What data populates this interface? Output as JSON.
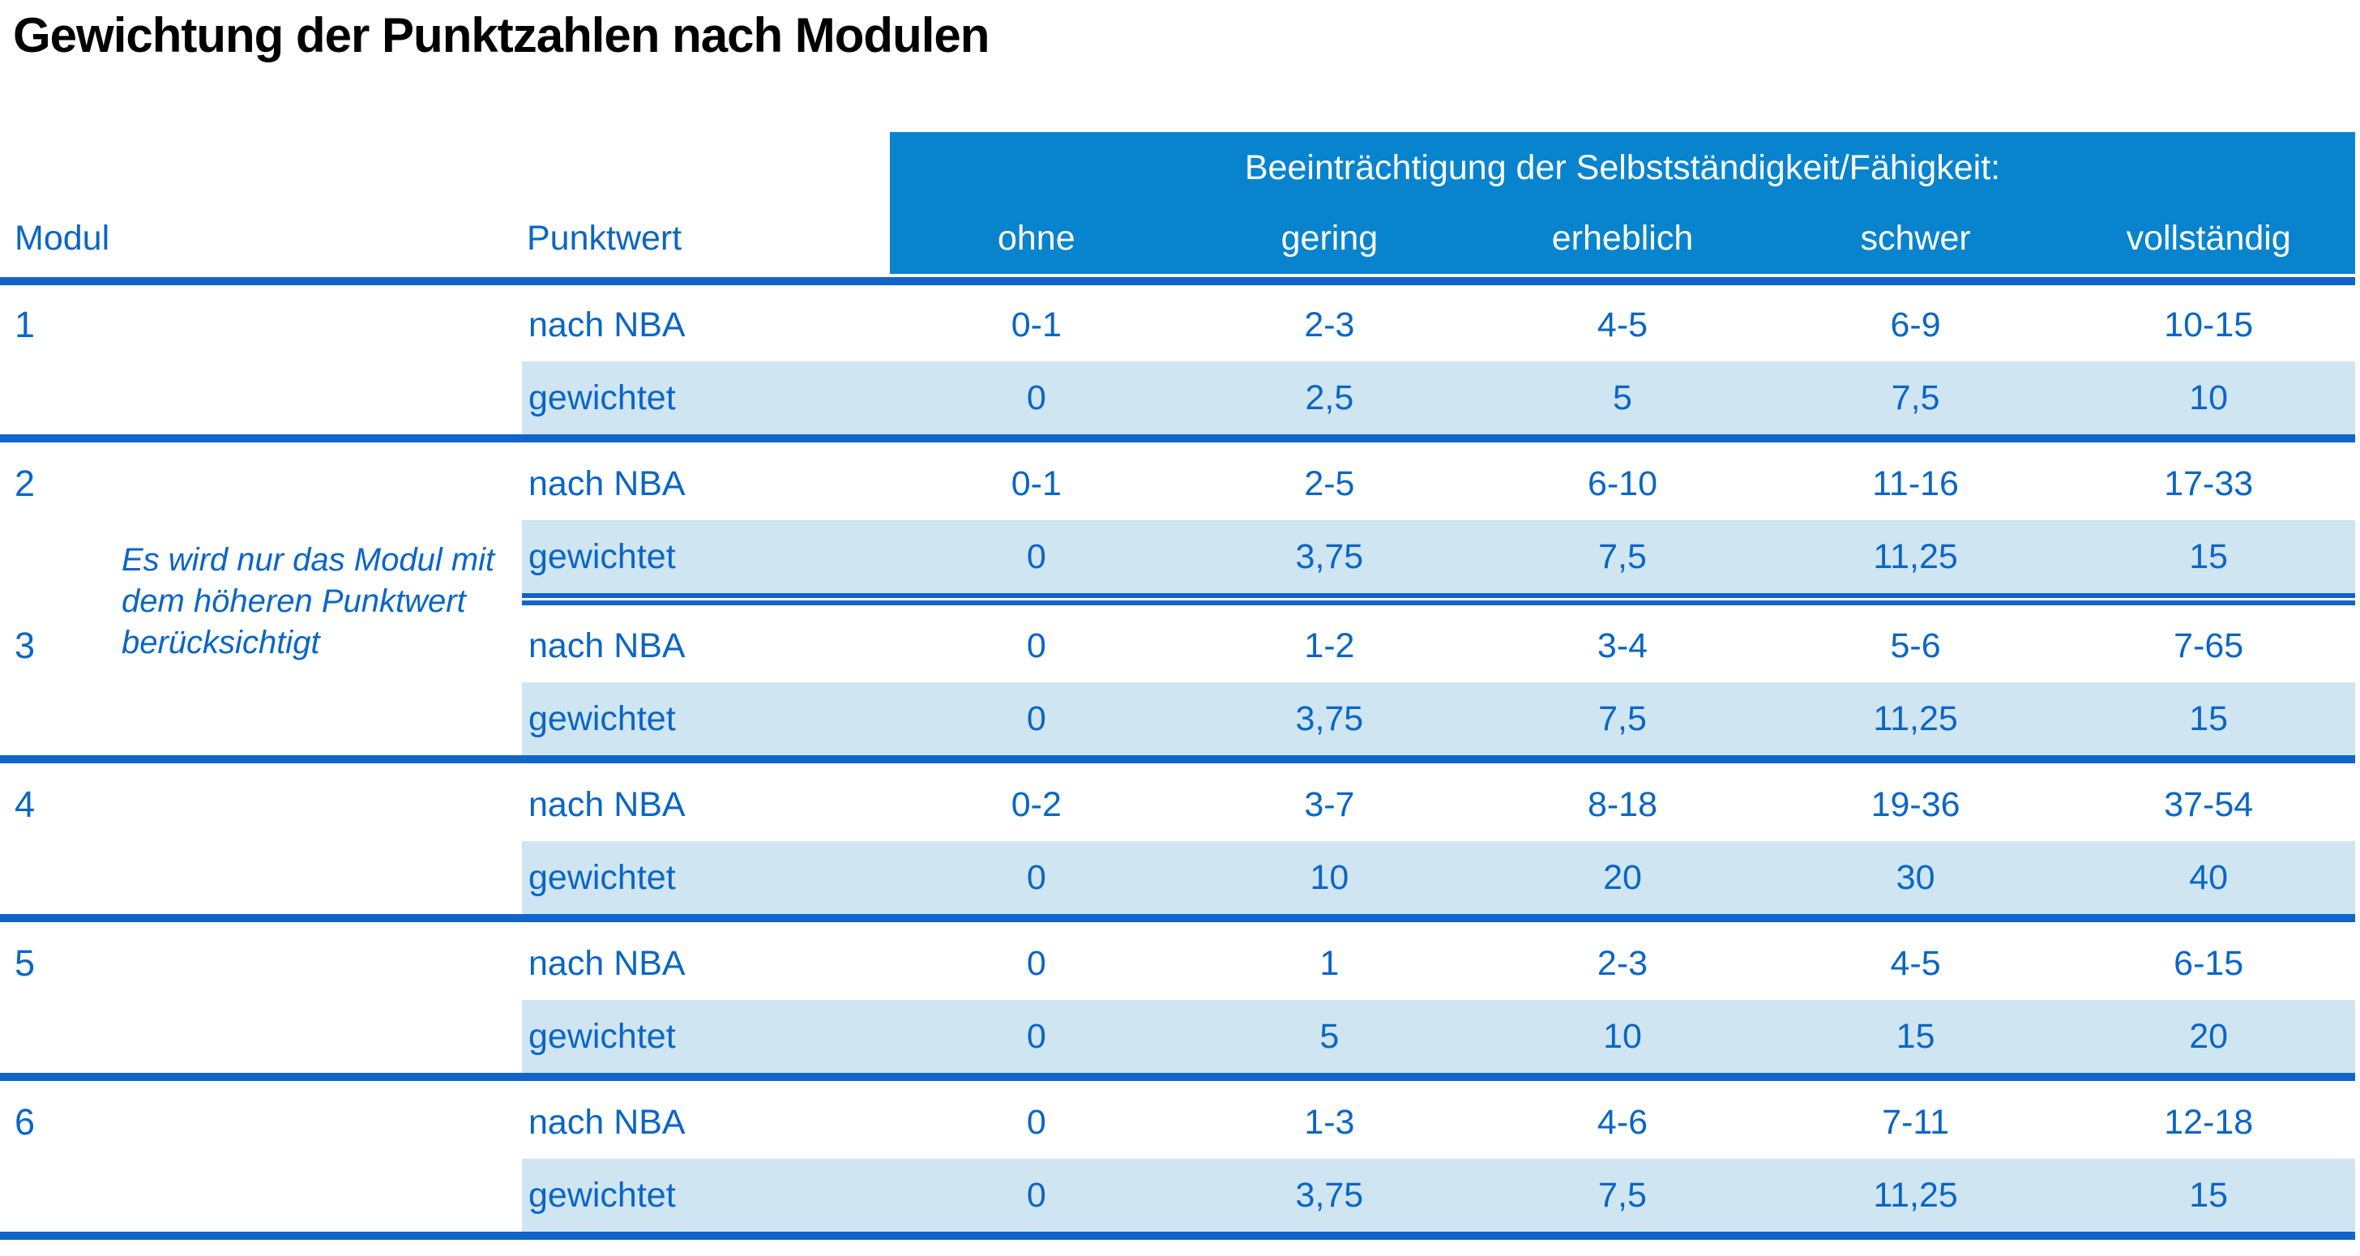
{
  "title": "Gewichtung der Punktzahlen nach Modulen",
  "table": {
    "group_header": "Beeinträchtigung der Selbstständigkeit/Fähigkeit:",
    "col_modul": "Modul",
    "col_punktwert": "Punktwert",
    "severity_labels": [
      "ohne",
      "gering",
      "erheblich",
      "schwer",
      "vollständig"
    ],
    "row_label_nba": "nach NBA",
    "row_label_gewichtet": "gewichtet",
    "note": "Es wird nur das Modul mit dem höheren Punktwert berücksichtigt",
    "modules": [
      {
        "num": "1",
        "nba": [
          "0-1",
          "2-3",
          "4-5",
          "6-9",
          "10-15"
        ],
        "gewichtet": [
          "0",
          "2,5",
          "5",
          "7,5",
          "10"
        ]
      },
      {
        "num": "2",
        "nba": [
          "0-1",
          "2-5",
          "6-10",
          "11-16",
          "17-33"
        ],
        "gewichtet": [
          "0",
          "3,75",
          "7,5",
          "11,25",
          "15"
        ]
      },
      {
        "num": "3",
        "nba": [
          "0",
          "1-2",
          "3-4",
          "5-6",
          "7-65"
        ],
        "gewichtet": [
          "0",
          "3,75",
          "7,5",
          "11,25",
          "15"
        ]
      },
      {
        "num": "4",
        "nba": [
          "0-2",
          "3-7",
          "8-18",
          "19-36",
          "37-54"
        ],
        "gewichtet": [
          "0",
          "10",
          "20",
          "30",
          "40"
        ]
      },
      {
        "num": "5",
        "nba": [
          "0",
          "1",
          "2-3",
          "4-5",
          "6-15"
        ],
        "gewichtet": [
          "0",
          "5",
          "10",
          "15",
          "20"
        ]
      },
      {
        "num": "6",
        "nba": [
          "0",
          "1-3",
          "4-6",
          "7-11",
          "12-18"
        ],
        "gewichtet": [
          "0",
          "3,75",
          "7,5",
          "11,25",
          "15"
        ]
      }
    ]
  },
  "colors": {
    "header_bar_blue": "#0884CE",
    "separator_line_blue": "#1164C9",
    "stripe_light_blue": "#D0E5F2",
    "text_blue": "#0A66C6",
    "title_black": "#000000",
    "background": "#FFFFFF"
  }
}
